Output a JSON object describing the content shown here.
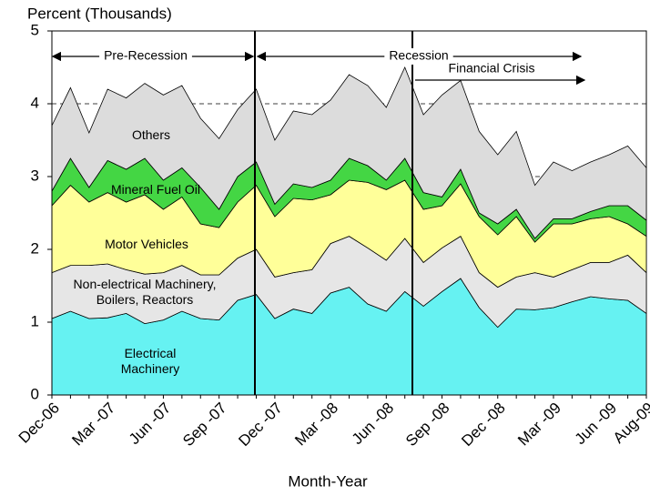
{
  "chart_data": {
    "type": "stacked_area",
    "y_label": "Percent (Thousands)",
    "x_label": "Month-Year",
    "categories": [
      "Dec-06",
      null,
      null,
      "Mar -07",
      null,
      null,
      "Jun -07",
      null,
      null,
      "Sep -07",
      null,
      null,
      "Dec -07",
      null,
      null,
      "Mar -08",
      null,
      null,
      "Jun -08",
      null,
      null,
      "Sep -08",
      null,
      null,
      "Dec -08",
      null,
      null,
      "Mar -09",
      null,
      null,
      "Jun -09",
      null,
      "Aug-09"
    ],
    "ylim": [
      0,
      5
    ],
    "yticks": [
      0,
      1,
      2,
      3,
      4,
      5
    ],
    "grid": true,
    "annotations": [
      "Pre-Recession",
      "Recession",
      "Financial Crisis"
    ],
    "series": [
      {
        "name": "Electrical Machinery",
        "color": "#66f2f2",
        "values": [
          1.05,
          1.15,
          1.05,
          1.06,
          1.12,
          0.98,
          1.03,
          1.15,
          1.05,
          1.03,
          1.3,
          1.38,
          1.05,
          1.18,
          1.12,
          1.4,
          1.48,
          1.25,
          1.15,
          1.42,
          1.22,
          1.42,
          1.6,
          1.2,
          0.93,
          1.18,
          1.17,
          1.2,
          1.28,
          1.35,
          1.32,
          1.3,
          1.12
        ]
      },
      {
        "name": "Non-electrical Machinery, Boilers, Reactors",
        "color": "#e6e6e6",
        "values": [
          0.63,
          0.63,
          0.73,
          0.74,
          0.6,
          0.68,
          0.65,
          0.63,
          0.6,
          0.62,
          0.58,
          0.62,
          0.57,
          0.5,
          0.6,
          0.68,
          0.7,
          0.77,
          0.7,
          0.73,
          0.6,
          0.6,
          0.58,
          0.48,
          0.55,
          0.44,
          0.51,
          0.42,
          0.44,
          0.47,
          0.5,
          0.62,
          0.56
        ]
      },
      {
        "name": "Motor Vehicles",
        "color": "#ffff99",
        "values": [
          0.92,
          1.1,
          0.87,
          0.98,
          0.93,
          1.09,
          0.87,
          0.94,
          0.7,
          0.65,
          0.77,
          0.88,
          0.83,
          1.02,
          0.96,
          0.67,
          0.77,
          0.9,
          0.97,
          0.8,
          0.73,
          0.58,
          0.72,
          0.77,
          0.72,
          0.83,
          0.42,
          0.73,
          0.63,
          0.6,
          0.63,
          0.43,
          0.5
        ]
      },
      {
        "name": "Mineral Fuel Oil",
        "color": "#44d644",
        "values": [
          0.2,
          0.37,
          0.2,
          0.44,
          0.45,
          0.5,
          0.4,
          0.4,
          0.5,
          0.25,
          0.35,
          0.32,
          0.17,
          0.2,
          0.17,
          0.2,
          0.3,
          0.23,
          0.13,
          0.3,
          0.23,
          0.12,
          0.2,
          0.05,
          0.15,
          0.1,
          0.05,
          0.07,
          0.07,
          0.1,
          0.15,
          0.25,
          0.22
        ]
      },
      {
        "name": "Others",
        "color": "#dcdcdc",
        "values": [
          0.9,
          0.97,
          0.75,
          0.98,
          0.98,
          1.03,
          1.17,
          1.13,
          0.95,
          0.97,
          0.92,
          1.0,
          0.88,
          1.0,
          1.0,
          1.1,
          1.15,
          1.1,
          1.0,
          1.25,
          1.07,
          1.4,
          1.22,
          1.12,
          0.95,
          1.07,
          0.73,
          0.78,
          0.66,
          0.68,
          0.7,
          0.82,
          0.72
        ]
      }
    ]
  }
}
